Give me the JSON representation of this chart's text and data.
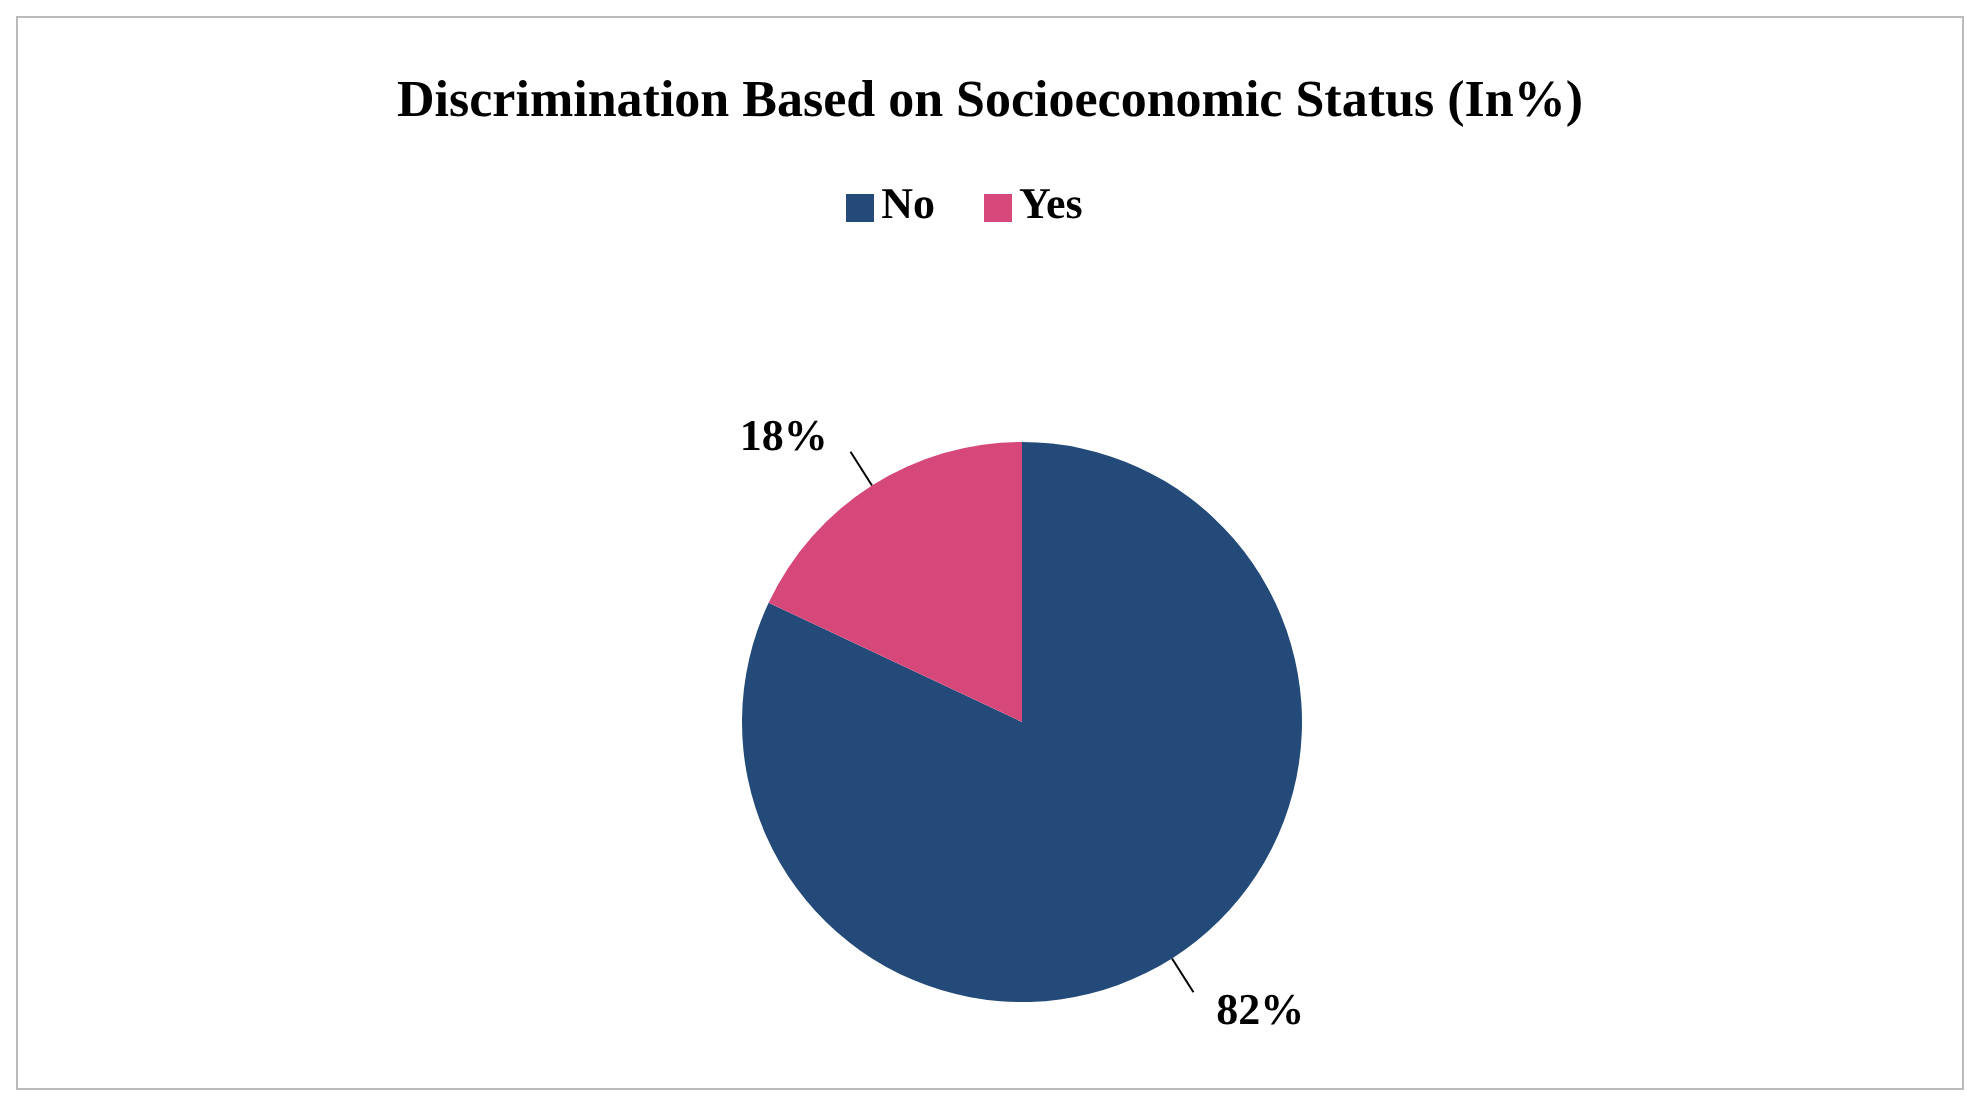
{
  "chart_data": {
    "type": "pie",
    "title": "Discrimination Based on Socioeconomic Status (In%)",
    "categories": [
      "No",
      "Yes"
    ],
    "values": [
      82,
      18
    ],
    "colors": [
      "#234a78",
      "#d6487a"
    ],
    "value_labels": [
      "82%",
      "18%"
    ],
    "legend": "top"
  }
}
